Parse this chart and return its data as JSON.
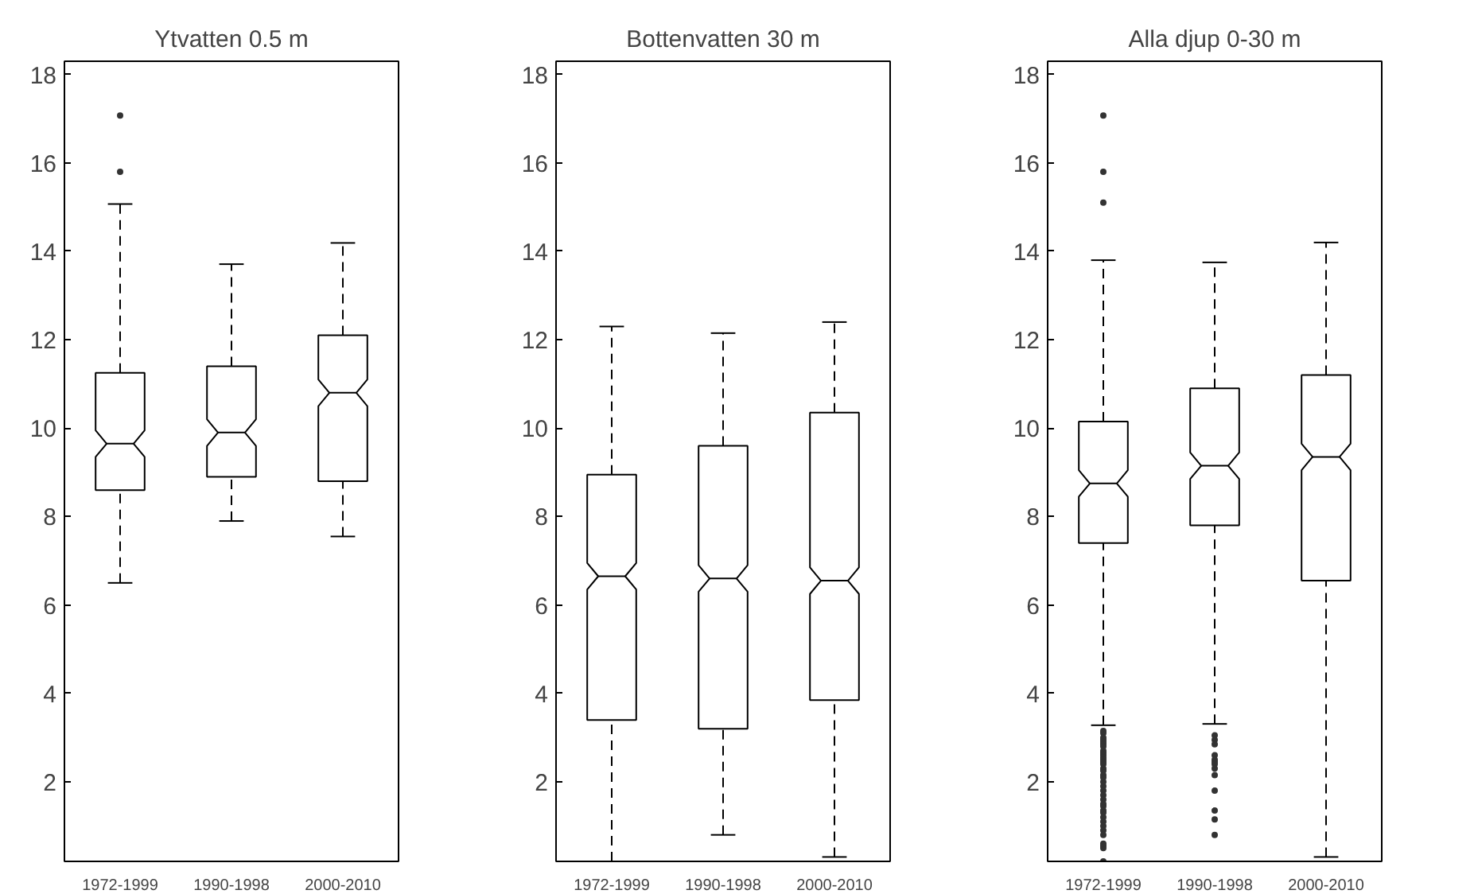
{
  "chart_data": [
    {
      "type": "box",
      "title": "Ytvatten 0.5 m",
      "categories": [
        "1972-1999",
        "1990-1998",
        "2000-2010"
      ],
      "ylim": [
        0.2,
        18.3
      ],
      "yticks": [
        2,
        4,
        6,
        8,
        10,
        12,
        14,
        16,
        18
      ],
      "marker": "circle",
      "grid": false,
      "boxes": [
        {
          "low": 6.5,
          "q1": 8.6,
          "median": 9.65,
          "q3": 11.25,
          "high": 15.07,
          "outliers": [
            15.8,
            17.07
          ]
        },
        {
          "low": 7.9,
          "q1": 8.9,
          "median": 9.9,
          "q3": 11.4,
          "high": 13.71
        },
        {
          "low": 7.55,
          "q1": 8.8,
          "median": 10.8,
          "q3": 12.1,
          "high": 14.19
        }
      ]
    },
    {
      "type": "box",
      "title": "Bottenvatten 30 m",
      "categories": [
        "1972-1999",
        "1990-1998",
        "2000-2010"
      ],
      "ylim": [
        0.2,
        18.3
      ],
      "yticks": [
        2,
        4,
        6,
        8,
        10,
        12,
        14,
        16,
        18
      ],
      "marker": "circle",
      "grid": false,
      "boxes": [
        {
          "low": 0.2,
          "q1": 3.4,
          "median": 6.65,
          "q3": 8.95,
          "high": 12.3
        },
        {
          "low": 0.8,
          "q1": 3.2,
          "median": 6.6,
          "q3": 9.6,
          "high": 12.15
        },
        {
          "low": 0.3,
          "q1": 3.85,
          "median": 6.55,
          "q3": 10.35,
          "high": 12.4
        }
      ]
    },
    {
      "type": "box",
      "title": "Alla djup 0-30 m",
      "categories": [
        "1972-1999",
        "1990-1998",
        "2000-2010"
      ],
      "ylim": [
        0.2,
        18.3
      ],
      "yticks": [
        2,
        4,
        6,
        8,
        10,
        12,
        14,
        16,
        18
      ],
      "marker": "circle",
      "grid": false,
      "boxes": [
        {
          "low": 3.28,
          "q1": 7.4,
          "median": 8.75,
          "q3": 10.15,
          "high": 13.8,
          "outliers": [
            3.15,
            3.1,
            3.0,
            2.95,
            2.9,
            2.85,
            2.8,
            2.7,
            2.65,
            2.6,
            2.55,
            2.5,
            2.45,
            2.4,
            2.3,
            2.25,
            2.15,
            2.1,
            2.0,
            1.9,
            1.8,
            1.7,
            1.6,
            1.5,
            1.45,
            1.35,
            1.3,
            1.2,
            1.1,
            1.0,
            0.9,
            0.8,
            0.6,
            0.55,
            0.5,
            0.2,
            15.1,
            15.8,
            17.07
          ]
        },
        {
          "low": 3.31,
          "q1": 7.8,
          "median": 9.15,
          "q3": 10.9,
          "high": 13.75,
          "outliers": [
            3.05,
            2.95,
            2.85,
            2.6,
            2.5,
            2.45,
            2.4,
            2.3,
            2.15,
            1.8,
            1.35,
            1.15,
            0.8
          ]
        },
        {
          "low": 0.3,
          "q1": 6.55,
          "median": 9.35,
          "q3": 11.2,
          "high": 14.2
        }
      ]
    }
  ]
}
